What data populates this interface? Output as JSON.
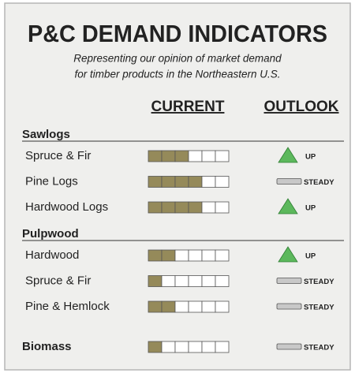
{
  "title": "P&C DEMAND INDICATORS",
  "subtitle": [
    "Representing our opinion of market demand",
    "for timber products in the Northeastern U.S."
  ],
  "columns": [
    "CURRENT",
    "OUTLOOK"
  ],
  "boxes": 6,
  "sections": [
    {
      "name": "Sawlogs",
      "rows": [
        {
          "label": "Spruce & Fir",
          "current": 3,
          "outlook": "UP"
        },
        {
          "label": "Pine Logs",
          "current": 4,
          "outlook": "STEADY"
        },
        {
          "label": "Hardwood Logs",
          "current": 4,
          "outlook": "UP"
        }
      ]
    },
    {
      "name": "Pulpwood",
      "rows": [
        {
          "label": "Hardwood",
          "current": 2,
          "outlook": "UP"
        },
        {
          "label": "Spruce & Fir",
          "current": 1,
          "outlook": "STEADY"
        },
        {
          "label": "Pine & Hemlock",
          "current": 2,
          "outlook": "STEADY"
        }
      ]
    }
  ],
  "biomass": {
    "label": "Biomass",
    "current": 1,
    "outlook": "STEADY"
  }
}
